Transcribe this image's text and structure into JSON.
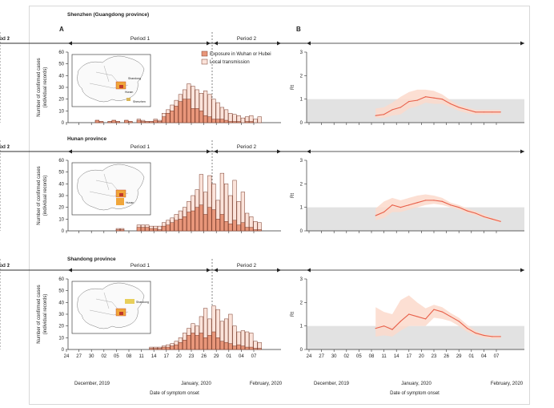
{
  "figure": {
    "panel_a_letter": "A",
    "panel_b_letter": "B",
    "xlabel": "Date of symptom onset",
    "x_ticks": [
      "24",
      "27",
      "30",
      "02",
      "05",
      "08",
      "11",
      "14",
      "17",
      "20",
      "23",
      "26",
      "29",
      "01",
      "04",
      "07"
    ],
    "month_labels": [
      "December, 2019",
      "January, 2020",
      "February, 2020"
    ],
    "legend": [
      "Exposure in Wuhan or Hubei",
      "Local transmission"
    ],
    "period_labels": [
      "Period 1",
      "Period 2"
    ],
    "ylabel_a": [
      "Number of confirmed cases",
      "(individual records)"
    ],
    "ylabel_b": "Rt",
    "colors": {
      "wuhan": "#e8967a",
      "local": "#fbe3da",
      "bar_edge": "#7a3b2a",
      "rt_line": "#e8604a",
      "rt_band": "#fcd9cb",
      "threshold": "#e2e2e2"
    }
  },
  "chart_data": [
    {
      "type": "bar",
      "panel": "A",
      "title": "Shenzhen (Guangdong province)",
      "date_start": "2019-12-24",
      "series": [
        {
          "name": "Exposure in Wuhan or Hubei",
          "values": [
            0,
            0,
            0,
            0,
            0,
            0,
            0,
            2,
            1,
            0,
            1,
            2,
            1,
            0,
            2,
            1,
            0,
            2,
            1,
            1,
            1,
            2,
            1,
            5,
            8,
            10,
            14,
            18,
            20,
            20,
            12,
            12,
            10,
            6,
            5,
            3,
            3,
            3,
            2,
            1,
            1,
            1,
            0,
            1,
            1,
            0,
            0
          ]
        },
        {
          "name": "Local transmission",
          "values": [
            0,
            0,
            0,
            0,
            0,
            0,
            0,
            2,
            1,
            0,
            1,
            2,
            1,
            0,
            2,
            1,
            0,
            3,
            2,
            1,
            1,
            3,
            2,
            8,
            11,
            15,
            19,
            24,
            28,
            33,
            31,
            28,
            25,
            27,
            24,
            20,
            17,
            13,
            11,
            8,
            7,
            6,
            4,
            5,
            6,
            3,
            5
          ]
        }
      ],
      "ylim": [
        0,
        60
      ],
      "period_split_date": "2020-01-28",
      "map_labels": [
        "Shenzhen",
        "Hunan",
        "Shandong"
      ]
    },
    {
      "type": "bar",
      "panel": "A",
      "title": "Hunan province",
      "date_start": "2019-12-24",
      "series": [
        {
          "name": "Exposure in Wuhan or Hubei",
          "values": [
            0,
            0,
            0,
            0,
            0,
            0,
            0,
            0,
            0,
            0,
            0,
            0,
            1,
            1,
            0,
            0,
            0,
            3,
            3,
            3,
            2,
            2,
            1,
            4,
            5,
            7,
            9,
            10,
            12,
            16,
            17,
            20,
            22,
            14,
            20,
            18,
            10,
            14,
            8,
            6,
            9,
            5,
            7,
            3,
            3,
            1,
            1
          ]
        },
        {
          "name": "Local transmission",
          "values": [
            0,
            0,
            0,
            0,
            0,
            0,
            0,
            0,
            0,
            0,
            0,
            0,
            2,
            2,
            0,
            0,
            0,
            5,
            5,
            5,
            4,
            4,
            4,
            7,
            9,
            11,
            14,
            17,
            20,
            25,
            30,
            35,
            48,
            33,
            47,
            40,
            26,
            49,
            40,
            30,
            43,
            25,
            33,
            15,
            12,
            8,
            7
          ]
        }
      ],
      "ylim": [
        0,
        60
      ],
      "period_split_date": "2020-01-28",
      "map_labels": [
        "Hunan"
      ]
    },
    {
      "type": "bar",
      "panel": "A",
      "title": "Shandong province",
      "date_start": "2019-12-24",
      "series": [
        {
          "name": "Exposure in Wuhan or Hubei",
          "values": [
            0,
            0,
            0,
            0,
            0,
            0,
            0,
            0,
            0,
            0,
            0,
            0,
            0,
            0,
            0,
            0,
            0,
            0,
            0,
            0,
            1,
            1,
            1,
            2,
            2,
            3,
            4,
            6,
            8,
            12,
            14,
            12,
            14,
            10,
            12,
            15,
            10,
            7,
            6,
            5,
            3,
            4,
            3,
            2,
            2,
            1,
            1
          ]
        },
        {
          "name": "Local transmission",
          "values": [
            0,
            0,
            0,
            0,
            0,
            0,
            0,
            0,
            0,
            0,
            0,
            0,
            0,
            0,
            0,
            0,
            0,
            0,
            0,
            0,
            2,
            2,
            2,
            3,
            4,
            5,
            7,
            10,
            14,
            18,
            22,
            20,
            28,
            35,
            26,
            37,
            34,
            24,
            26,
            30,
            20,
            15,
            16,
            15,
            14,
            7,
            6
          ]
        }
      ],
      "ylim": [
        0,
        60
      ],
      "period_split_date": "2020-01-28",
      "map_labels": [
        "Shandong"
      ]
    },
    {
      "type": "line",
      "panel": "B",
      "region": "Shenzhen (Guangdong province)",
      "x": [
        "2020-01-09",
        "2020-01-11",
        "2020-01-13",
        "2020-01-15",
        "2020-01-17",
        "2020-01-19",
        "2020-01-21",
        "2020-01-23",
        "2020-01-25",
        "2020-01-27",
        "2020-01-29",
        "2020-01-31",
        "2020-02-02",
        "2020-02-04",
        "2020-02-06",
        "2020-02-08"
      ],
      "y": [
        0.3,
        0.35,
        0.55,
        0.65,
        0.9,
        0.95,
        1.1,
        1.05,
        1.0,
        0.8,
        0.65,
        0.55,
        0.45,
        0.45,
        0.45,
        0.45
      ],
      "lower": [
        0.2,
        0.2,
        0.3,
        0.35,
        0.6,
        0.7,
        0.85,
        0.8,
        0.8,
        0.65,
        0.5,
        0.4,
        0.35,
        0.35,
        0.35,
        0.35
      ],
      "upper": [
        0.6,
        0.65,
        0.85,
        1.1,
        1.3,
        1.4,
        1.4,
        1.35,
        1.2,
        0.95,
        0.75,
        0.65,
        0.55,
        0.55,
        0.55,
        0.55
      ],
      "threshold": 1,
      "ylim": [
        0,
        3
      ]
    },
    {
      "type": "line",
      "panel": "B",
      "region": "Hunan province",
      "x": [
        "2020-01-09",
        "2020-01-11",
        "2020-01-13",
        "2020-01-15",
        "2020-01-17",
        "2020-01-19",
        "2020-01-21",
        "2020-01-23",
        "2020-01-25",
        "2020-01-27",
        "2020-01-29",
        "2020-01-31",
        "2020-02-02",
        "2020-02-04",
        "2020-02-06",
        "2020-02-08"
      ],
      "y": [
        0.65,
        0.8,
        1.1,
        1.0,
        1.1,
        1.2,
        1.3,
        1.3,
        1.25,
        1.1,
        1.0,
        0.85,
        0.75,
        0.6,
        0.5,
        0.4
      ],
      "lower": [
        0.45,
        0.55,
        0.8,
        0.8,
        0.9,
        1.0,
        1.1,
        1.15,
        1.1,
        1.0,
        0.9,
        0.75,
        0.65,
        0.55,
        0.45,
        0.35
      ],
      "upper": [
        0.95,
        1.25,
        1.4,
        1.3,
        1.4,
        1.5,
        1.55,
        1.5,
        1.4,
        1.2,
        1.1,
        0.95,
        0.85,
        0.7,
        0.55,
        0.45
      ],
      "threshold": 1,
      "ylim": [
        0,
        3
      ]
    },
    {
      "type": "line",
      "panel": "B",
      "region": "Shandong province",
      "x": [
        "2020-01-09",
        "2020-01-11",
        "2020-01-13",
        "2020-01-15",
        "2020-01-17",
        "2020-01-19",
        "2020-01-21",
        "2020-01-23",
        "2020-01-25",
        "2020-01-27",
        "2020-01-29",
        "2020-01-31",
        "2020-02-02",
        "2020-02-04",
        "2020-02-06",
        "2020-02-08"
      ],
      "y": [
        0.9,
        1.0,
        0.85,
        1.2,
        1.5,
        1.4,
        1.3,
        1.7,
        1.6,
        1.4,
        1.2,
        0.9,
        0.7,
        0.6,
        0.55,
        0.55
      ],
      "lower": [
        0.55,
        0.6,
        0.55,
        0.8,
        1.0,
        1.0,
        1.0,
        1.35,
        1.3,
        1.2,
        1.0,
        0.75,
        0.6,
        0.5,
        0.45,
        0.45
      ],
      "upper": [
        1.8,
        1.6,
        1.5,
        2.1,
        2.3,
        2.0,
        1.75,
        1.9,
        1.8,
        1.55,
        1.35,
        1.05,
        0.8,
        0.65,
        0.6,
        0.6
      ],
      "threshold": 1,
      "ylim": [
        0,
        3
      ]
    }
  ]
}
